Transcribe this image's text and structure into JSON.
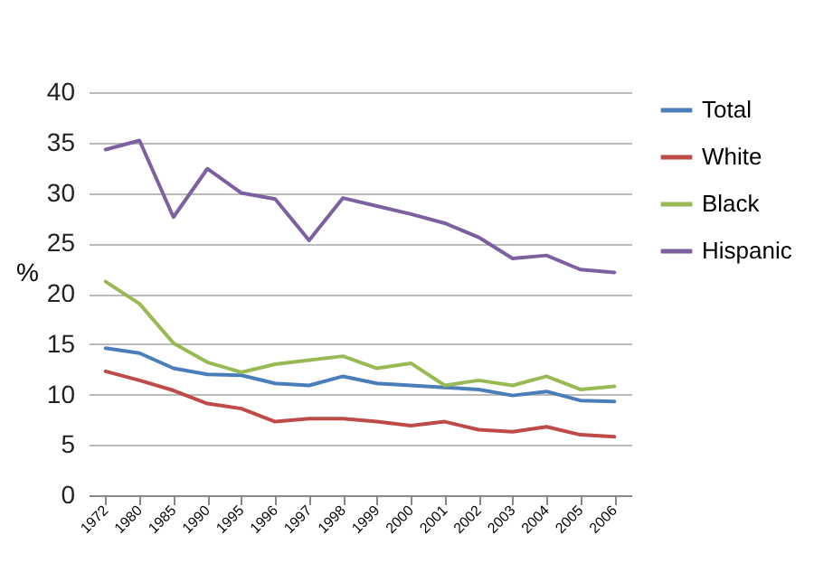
{
  "chart_data": {
    "type": "line",
    "ylabel": "%",
    "categories": [
      "1972",
      "1980",
      "1985",
      "1990",
      "1995",
      "1996",
      "1997",
      "1998",
      "1999",
      "2000",
      "2001",
      "2002",
      "2003",
      "2004",
      "2005",
      "2006"
    ],
    "series": [
      {
        "name": "Total",
        "color": "#4a7ebb",
        "values": [
          14.6,
          14.1,
          12.6,
          12.0,
          11.9,
          11.1,
          10.9,
          11.8,
          11.1,
          10.9,
          10.7,
          10.5,
          9.9,
          10.3,
          9.4,
          9.3
        ]
      },
      {
        "name": "White",
        "color": "#be4b48",
        "values": [
          12.3,
          11.4,
          10.4,
          9.1,
          8.6,
          7.3,
          7.6,
          7.6,
          7.3,
          6.9,
          7.3,
          6.5,
          6.3,
          6.8,
          6.0,
          5.8
        ]
      },
      {
        "name": "Black",
        "color": "#98b954",
        "values": [
          21.2,
          19.0,
          15.1,
          13.2,
          12.2,
          13.0,
          13.4,
          13.8,
          12.6,
          13.1,
          10.9,
          11.4,
          10.9,
          11.8,
          10.5,
          10.8
        ]
      },
      {
        "name": "Hispanic",
        "color": "#7d60a0",
        "values": [
          34.3,
          35.2,
          27.6,
          32.4,
          30.0,
          29.4,
          25.3,
          29.5,
          28.7,
          27.9,
          27.0,
          25.6,
          23.5,
          23.8,
          22.4,
          22.1
        ]
      }
    ],
    "ylim": [
      0,
      40
    ],
    "yticks": [
      0,
      5,
      10,
      15,
      20,
      25,
      30,
      35,
      40
    ],
    "grid": "y",
    "legend": "right"
  }
}
